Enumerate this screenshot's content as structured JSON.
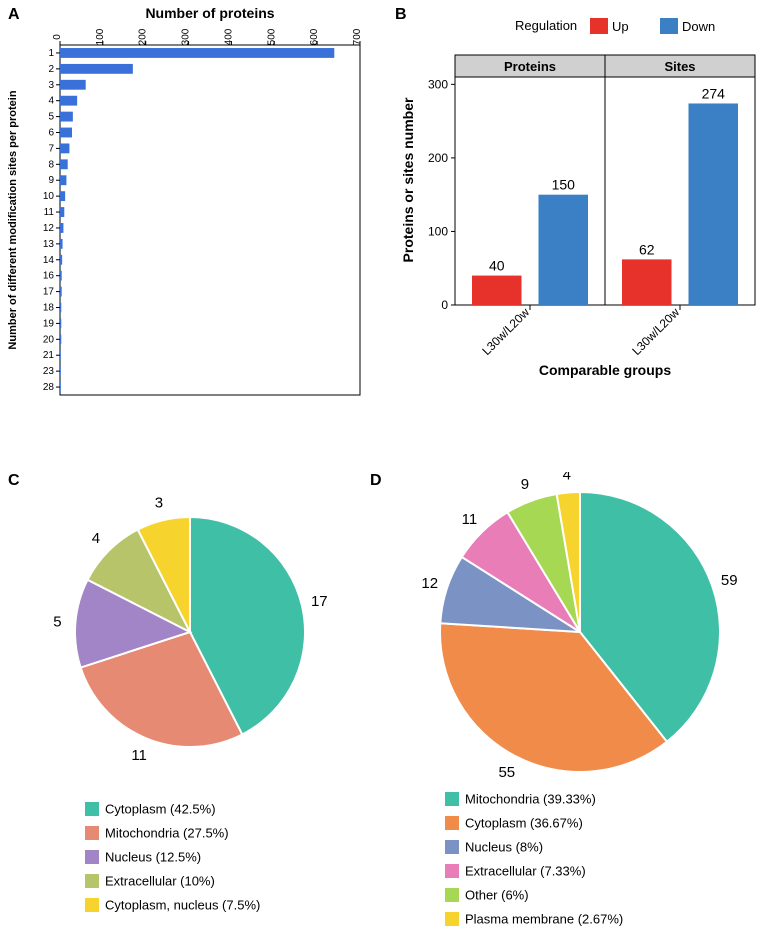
{
  "panelA": {
    "label": "A",
    "type": "horizontal-bar",
    "xlabel": "Number of proteins",
    "ylabel": "Number of different modification sites per protein",
    "categories": [
      "1",
      "2",
      "3",
      "4",
      "5",
      "6",
      "7",
      "8",
      "9",
      "10",
      "11",
      "12",
      "13",
      "14",
      "16",
      "17",
      "18",
      "19",
      "20",
      "21",
      "23",
      "28"
    ],
    "values": [
      640,
      170,
      60,
      40,
      30,
      28,
      22,
      18,
      15,
      12,
      10,
      8,
      6,
      5,
      4,
      4,
      3,
      3,
      3,
      2,
      2,
      2
    ],
    "xticks": [
      0,
      100,
      200,
      300,
      400,
      500,
      600,
      700
    ],
    "bar_color": "#3a71d8",
    "background": "#ffffff",
    "xlabel_fontsize": 14,
    "ylabel_fontsize": 11,
    "tick_fontsize": 10
  },
  "panelB": {
    "label": "B",
    "type": "faceted-bar",
    "ylabel": "Proteins or sites number",
    "xlabel": "Comparable groups",
    "legend_title": "Regulation",
    "legend": [
      {
        "label": "Up",
        "color": "#e6322a"
      },
      {
        "label": "Down",
        "color": "#3b7fc4"
      }
    ],
    "facets": [
      {
        "title": "Proteins",
        "group": "L30w/L20w",
        "bars": [
          {
            "label": "40",
            "value": 40,
            "color": "#e6322a"
          },
          {
            "label": "150",
            "value": 150,
            "color": "#3b7fc4"
          }
        ]
      },
      {
        "title": "Sites",
        "group": "L30w/L20w",
        "bars": [
          {
            "label": "62",
            "value": 62,
            "color": "#e6322a"
          },
          {
            "label": "274",
            "value": 274,
            "color": "#3b7fc4"
          }
        ]
      }
    ],
    "yticks": [
      0,
      100,
      200,
      300
    ],
    "ylim": [
      0,
      310
    ],
    "facet_bg": "#d0d0d0",
    "panel_bg": "#ffffff",
    "border_color": "#000000",
    "label_fontsize": 14,
    "tick_fontsize": 12,
    "value_fontsize": 14
  },
  "panelC": {
    "label": "C",
    "type": "pie",
    "slices": [
      {
        "label": "17",
        "value": 17,
        "color": "#3fbfa5"
      },
      {
        "label": "11",
        "value": 11,
        "color": "#e68a73"
      },
      {
        "label": "5",
        "value": 5,
        "color": "#a285c7"
      },
      {
        "label": "4",
        "value": 4,
        "color": "#b8c46a"
      },
      {
        "label": "3",
        "value": 3,
        "color": "#f7d32e"
      }
    ],
    "legend": [
      {
        "label": "Cytoplasm (42.5%)",
        "color": "#3fbfa5"
      },
      {
        "label": "Mitochondria (27.5%)",
        "color": "#e68a73"
      },
      {
        "label": "Nucleus (12.5%)",
        "color": "#a285c7"
      },
      {
        "label": "Extracellular (10%)",
        "color": "#b8c46a"
      },
      {
        "label": "Cytoplasm, nucleus (7.5%)",
        "color": "#f7d32e"
      }
    ],
    "stroke": "#ffffff",
    "legend_fontsize": 13
  },
  "panelD": {
    "label": "D",
    "type": "pie",
    "slices": [
      {
        "label": "59",
        "value": 59,
        "color": "#3fbfa5"
      },
      {
        "label": "55",
        "value": 55,
        "color": "#f08b4a"
      },
      {
        "label": "12",
        "value": 12,
        "color": "#7a93c4"
      },
      {
        "label": "11",
        "value": 11,
        "color": "#e87db8"
      },
      {
        "label": "9",
        "value": 9,
        "color": "#a6d854"
      },
      {
        "label": "4",
        "value": 4,
        "color": "#f7d32e"
      }
    ],
    "legend": [
      {
        "label": "Mitochondria (39.33%)",
        "color": "#3fbfa5"
      },
      {
        "label": "Cytoplasm (36.67%)",
        "color": "#f08b4a"
      },
      {
        "label": "Nucleus (8%)",
        "color": "#7a93c4"
      },
      {
        "label": "Extracellular (7.33%)",
        "color": "#e87db8"
      },
      {
        "label": "Other (6%)",
        "color": "#a6d854"
      },
      {
        "label": "Plasma membrane (2.67%)",
        "color": "#f7d32e"
      }
    ],
    "stroke": "#ffffff",
    "legend_fontsize": 13
  }
}
